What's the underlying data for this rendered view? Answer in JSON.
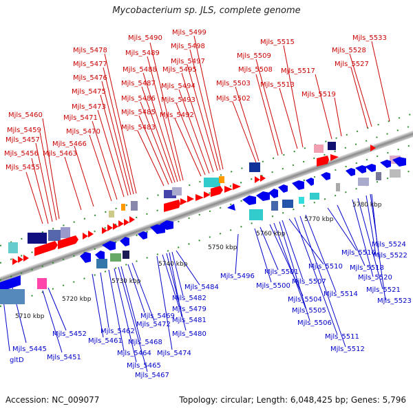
{
  "title": "Mycobacterium sp. JLS, complete genome",
  "footer": {
    "accession": "Accession: NC_009077",
    "summary": "Topology: circular; Length: 6,048,425 bp; Genes: 5,796"
  },
  "colors": {
    "top_labels": "#cc0000",
    "bottom_labels": "#0000cc",
    "backbone": "#888888",
    "tick": "#2e8b2e"
  },
  "kbp_labels": [
    "5710 kbp",
    "5720 kbp",
    "5730 kbp",
    "5740 kbp",
    "5750 kbp",
    "5760 kbp",
    "5770 kbp",
    "5780 kbp"
  ],
  "top_genes": [
    "Mjls_5455",
    "Mjls_5456",
    "Mjls_5457",
    "Mjls_5459",
    "Mjls_5460",
    "Mjls_5463",
    "Mjls_5466",
    "Mjls_5470",
    "Mjls_5471",
    "Mjls_5473",
    "Mjls_5475",
    "Mjls_5476",
    "Mjls_5477",
    "Mjls_5478",
    "Mjls_5483",
    "Mjls_5485",
    "Mjls_5486",
    "Mjls_5487",
    "Mjls_5488",
    "Mjls_5489",
    "Mjls_5490",
    "Mjls_5492",
    "Mjls_5493",
    "Mjls_5494",
    "Mjls_5495",
    "Mjls_5497",
    "Mjls_5498",
    "Mjls_5499",
    "Mjls_5502",
    "Mjls_5503",
    "Mjls_5508",
    "Mjls_5509",
    "Mjls_5513",
    "Mjls_5515",
    "Mjls_5517",
    "Mjls_5519",
    "Mjls_5527",
    "Mjls_5528",
    "Mjls_5533"
  ],
  "bottom_genes": [
    "gltD",
    "Mjls_5445",
    "Mjls_5451",
    "Mjls_5452",
    "Mjls_5461",
    "Mjls_5462",
    "Mjls_5464",
    "Mjls_5465",
    "Mjls_5467",
    "Mjls_5468",
    "Mjls_5469",
    "Mjls_5472",
    "Mjls_5474",
    "Mjls_5479",
    "Mjls_5480",
    "Mjls_5481",
    "Mjls_5482",
    "Mjls_5484",
    "Mjls_5496",
    "Mjls_5500",
    "Mjls_5501",
    "Mjls_5504",
    "Mjls_5505",
    "Mjls_5506",
    "Mjls_5507",
    "Mjls_5510",
    "Mjls_5511",
    "Mjls_5512",
    "Mjls_5514",
    "Mjls_5516",
    "Mjls_5518",
    "Mjls_5520",
    "Mjls_5521",
    "Mjls_5522",
    "Mjls_5523",
    "Mjls_5524"
  ]
}
